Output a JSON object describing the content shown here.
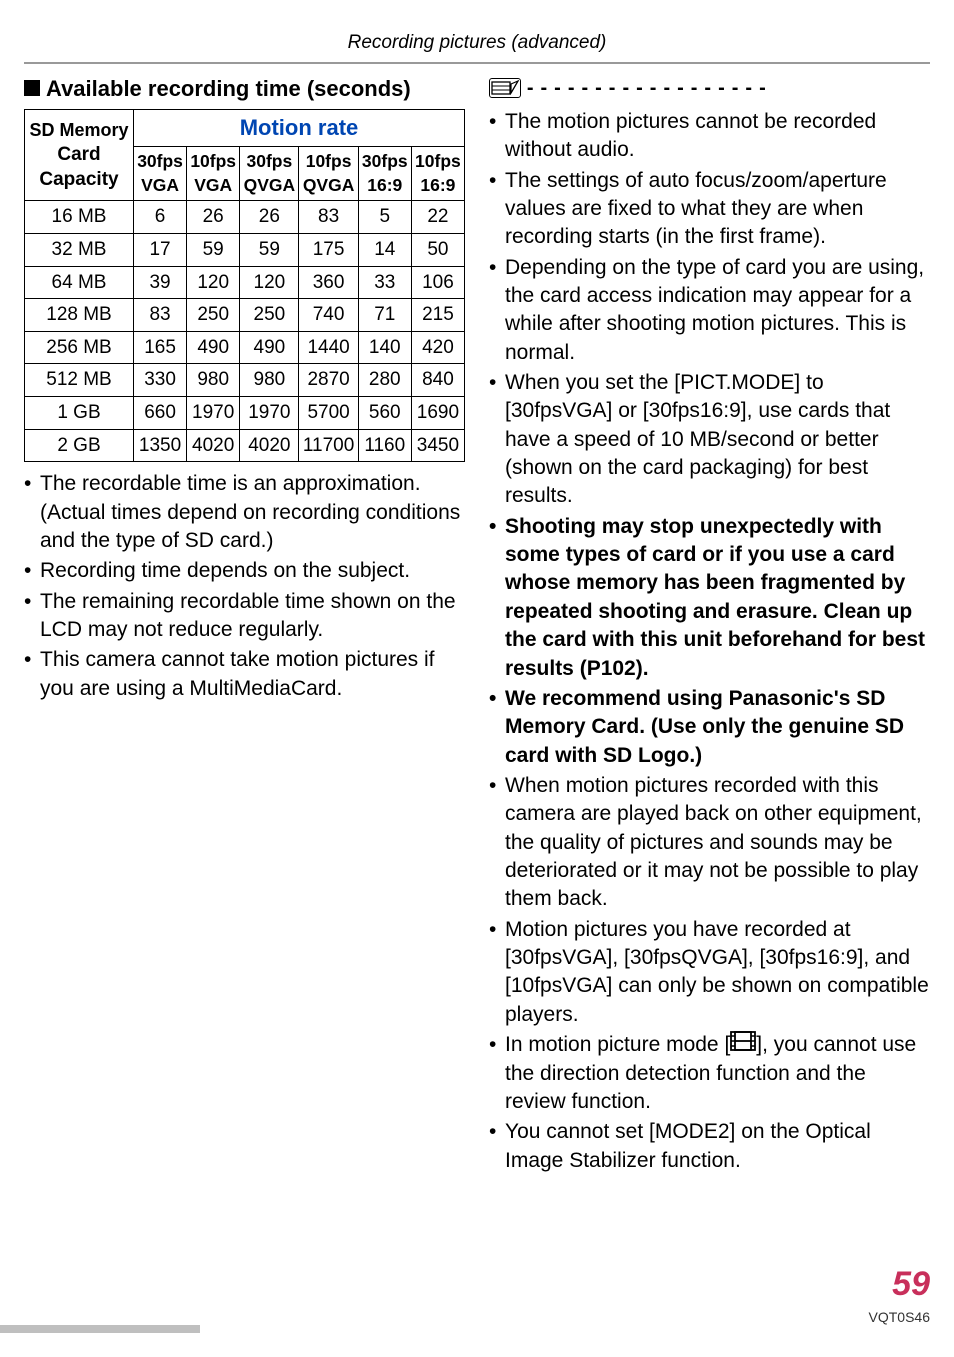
{
  "header": {
    "breadcrumb": "Recording pictures (advanced)"
  },
  "left": {
    "section_title_prefix": "■",
    "section_title": "Available recording time (seconds)",
    "table": {
      "sd_header_line1": "SD Memory",
      "sd_header_line2": "Card",
      "sd_header_line3": "Capacity",
      "motion_rate": "Motion rate",
      "cols": [
        {
          "l1": "30fps",
          "l2": "VGA"
        },
        {
          "l1": "10fps",
          "l2": "VGA"
        },
        {
          "l1": "30fps",
          "l2": "QVGA"
        },
        {
          "l1": "10fps",
          "l2": "QVGA"
        },
        {
          "l1": "30fps",
          "l2": "16:9"
        },
        {
          "l1": "10fps",
          "l2": "16:9"
        }
      ],
      "rows": [
        {
          "cap": "16 MB",
          "v": [
            "6",
            "26",
            "26",
            "83",
            "5",
            "22"
          ]
        },
        {
          "cap": "32 MB",
          "v": [
            "17",
            "59",
            "59",
            "175",
            "14",
            "50"
          ]
        },
        {
          "cap": "64 MB",
          "v": [
            "39",
            "120",
            "120",
            "360",
            "33",
            "106"
          ]
        },
        {
          "cap": "128 MB",
          "v": [
            "83",
            "250",
            "250",
            "740",
            "71",
            "215"
          ]
        },
        {
          "cap": "256 MB",
          "v": [
            "165",
            "490",
            "490",
            "1440",
            "140",
            "420"
          ]
        },
        {
          "cap": "512 MB",
          "v": [
            "330",
            "980",
            "980",
            "2870",
            "280",
            "840"
          ]
        },
        {
          "cap": "1 GB",
          "v": [
            "660",
            "1970",
            "1970",
            "5700",
            "560",
            "1690"
          ]
        },
        {
          "cap": "2 GB",
          "v": [
            "1350",
            "4020",
            "4020",
            "11700",
            "1160",
            "3450"
          ]
        }
      ]
    },
    "bullets": [
      "The recordable time is an approximation. (Actual times depend on recording conditions and the type of SD card.)",
      "Recording time depends on the subject.",
      "The remaining recordable time shown on the LCD may not reduce regularly.",
      "This camera cannot take motion pictures if you are using a MultiMediaCard."
    ]
  },
  "right": {
    "dashes": "------------------",
    "bullets": [
      {
        "t": "The motion pictures cannot be recorded without audio."
      },
      {
        "t": "The settings of auto focus/zoom/aperture values are fixed to what they are when recording starts (in the first frame)."
      },
      {
        "t": "Depending on the type of card you are using, the card access indication may appear for a while after shooting motion pictures. This is normal."
      },
      {
        "t": "When you set the [PICT.MODE] to [30fpsVGA] or [30fps16:9], use cards that have a speed of 10 MB/second or better (shown on the card packaging) for best results."
      },
      {
        "t": "Shooting may stop unexpectedly with some types of card or if you use a card whose memory has been fragmented by repeated shooting and erasure. Clean up the card with this unit beforehand for best results (P102).",
        "bold": true
      },
      {
        "t": "We recommend using Panasonic's SD Memory Card. (Use only the genuine SD card with SD Logo.)",
        "bold": true
      },
      {
        "t": "When motion pictures recorded with this camera are played back on other equipment, the quality of pictures and sounds may be deteriorated or it may not be possible to play them back."
      },
      {
        "t": "Motion pictures you have recorded at [30fpsVGA], [30fpsQVGA], [30fps16:9], and [10fpsVGA] can only be shown on compatible players."
      },
      {
        "film": true,
        "pre": "In motion picture mode [",
        "post": "], you cannot use the direction detection function and the review function."
      },
      {
        "t": "You cannot set [MODE2] on the Optical Image Stabilizer function."
      }
    ]
  },
  "footer": {
    "page": "59",
    "docid": "VQT0S46"
  }
}
